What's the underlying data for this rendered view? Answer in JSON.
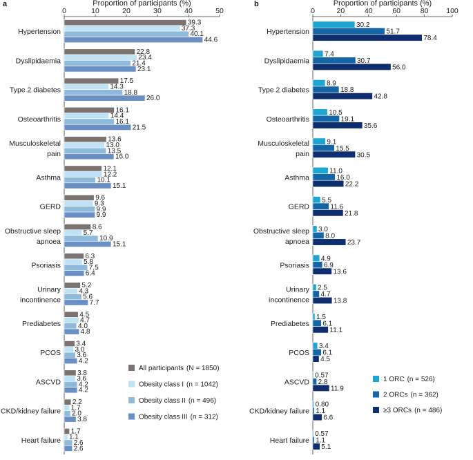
{
  "chart_data": [
    {
      "type": "bar",
      "orientation": "horizontal",
      "panel_label": "a",
      "xlabel": "Proportion of participants (%)",
      "xlim": [
        0,
        50
      ],
      "xticks": [
        0,
        10,
        20,
        30,
        40,
        50
      ],
      "categories": [
        [
          "Hypertension"
        ],
        [
          "Dyslipidaemia"
        ],
        [
          "Type 2 diabetes"
        ],
        [
          "Osteoarthritis"
        ],
        [
          "Musculoskeletal",
          "pain"
        ],
        [
          "Asthma"
        ],
        [
          "GERD"
        ],
        [
          "Obstructive sleep",
          "apnoea"
        ],
        [
          "Psoriasis"
        ],
        [
          "Urinary",
          "incontinence"
        ],
        [
          "Prediabetes"
        ],
        [
          "PCOS"
        ],
        [
          "ASCVD"
        ],
        [
          "CKD/kidney failure"
        ],
        [
          "Heart failure"
        ]
      ],
      "series": [
        {
          "name": "All participants",
          "n_label": "(N = 1850)",
          "color": "#7a7370",
          "values": [
            "39.3",
            "22.8",
            "17.5",
            "16.1",
            "13.6",
            "12.1",
            "9.6",
            "8.6",
            "6.3",
            "5.2",
            "4.5",
            "3.4",
            "3.8",
            "2.2",
            "1.7"
          ]
        },
        {
          "name": "Obesity class I",
          "n_label": "(n = 1042)",
          "color": "#bfe3f5",
          "values": [
            "37.3",
            "23.4",
            "14.3",
            "14.4",
            "13.0",
            "12.2",
            "9.3",
            "5.7",
            "5.8",
            "4.3",
            "4.7",
            "3.0",
            "3.6",
            "1.7",
            "1.1"
          ]
        },
        {
          "name": "Obesity class II",
          "n_label": "(n = 496)",
          "color": "#8fbadc",
          "values": [
            "40.1",
            "21.4",
            "18.8",
            "16.1",
            "13.5",
            "10.1",
            "9.9",
            "10.9",
            "7.5",
            "5.6",
            "4.0",
            "3.6",
            "4.2",
            "2.0",
            "2.6"
          ]
        },
        {
          "name": "Obesity class III",
          "n_label": "(n = 312)",
          "color": "#6a8fc4",
          "values": [
            "44.6",
            "23.1",
            "26.0",
            "21.5",
            "16.0",
            "15.1",
            "9.9",
            "15.1",
            "6.4",
            "7.7",
            "4.8",
            "4.2",
            "4.2",
            "3.8",
            "2.6"
          ]
        }
      ],
      "legend_position": "bottom-right"
    },
    {
      "type": "bar",
      "orientation": "horizontal",
      "panel_label": "b",
      "xlabel": "Proportion of participants (%)",
      "xlim": [
        0,
        100
      ],
      "xticks": [
        0,
        20,
        40,
        60,
        80,
        100
      ],
      "categories": [
        [
          "Hypertension"
        ],
        [
          "Dyslipidaemia"
        ],
        [
          "Type 2 diabetes"
        ],
        [
          "Osteoarthritis"
        ],
        [
          "Musculoskeletal",
          "pain"
        ],
        [
          "Asthma"
        ],
        [
          "GERD"
        ],
        [
          "Obstructive sleep",
          "apnoea"
        ],
        [
          "Psoriasis"
        ],
        [
          "Urinary",
          "incontinence"
        ],
        [
          "Prediabetes"
        ],
        [
          "PCOS"
        ],
        [
          "ASCVD"
        ],
        [
          "CKD/kidney failure"
        ],
        [
          "Heart failure"
        ]
      ],
      "series": [
        {
          "name": "1 ORC",
          "n_label": "(n = 526)",
          "color": "#1ea6d2",
          "values": [
            "30.2",
            "7.4",
            "8.9",
            "10.5",
            "9.1",
            "11.0",
            "5.5",
            "3.0",
            "4.9",
            "2.5",
            "1.5",
            "3.4",
            "0.57",
            "0.80",
            "0.57"
          ]
        },
        {
          "name": "2 ORCs",
          "n_label": "(n = 362)",
          "color": "#1466a6",
          "values": [
            "51.7",
            "30.7",
            "18.8",
            "19.1",
            "15.5",
            "16.0",
            "11.6",
            "8.0",
            "6.9",
            "4.7",
            "6.1",
            "6.1",
            "2.8",
            "1.1",
            "1.1"
          ]
        },
        {
          "name": "≥3 ORCs",
          "n_label": "(n = 486)",
          "color": "#0e2e6e",
          "values": [
            "78.4",
            "56.0",
            "42.8",
            "35.6",
            "30.5",
            "22.2",
            "21.8",
            "23.7",
            "13.6",
            "13.8",
            "11.1",
            "4.5",
            "11.9",
            "6.6",
            "5.1"
          ]
        }
      ],
      "legend_position": "bottom-right"
    }
  ]
}
